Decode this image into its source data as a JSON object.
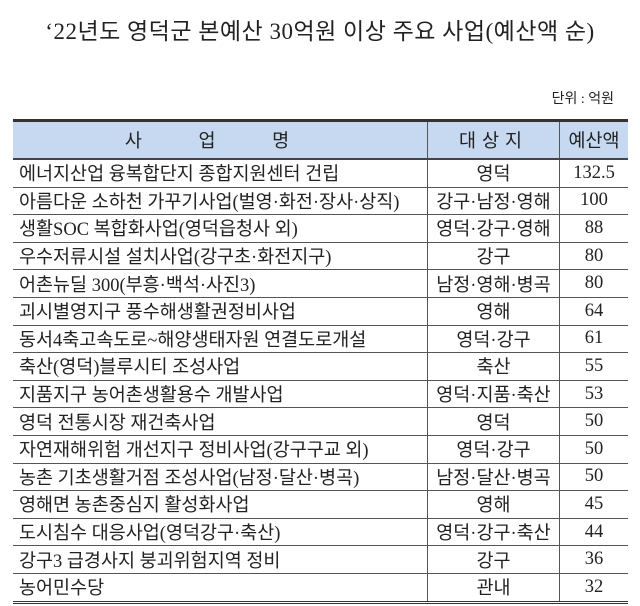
{
  "title": "‘22년도 영덕군 본예산 30억원 이상 주요 사업(예산액 순)",
  "unit": "단위 : 억원",
  "table": {
    "headers": [
      "사 업 명",
      "대상지",
      "예산액"
    ],
    "header_color": "#c6d9f1",
    "rows": [
      [
        "에너지산업 융복합단지 종합지원센터 건립",
        "영덕",
        "132.5"
      ],
      [
        "아름다운 소하천 가꾸기사업(벌영·화전·장사·상직)",
        "강구·남정·영해",
        "100"
      ],
      [
        "생활SOC 복합화사업(영덕읍청사 외)",
        "영덕·강구·영해",
        "88"
      ],
      [
        "우수저류시설 설치사업(강구초·화전지구)",
        "강구",
        "80"
      ],
      [
        "어촌뉴딜 300(부흥·백석·사진3)",
        "남정·영해·병곡",
        "80"
      ],
      [
        "괴시별영지구 풍수해생활권정비사업",
        "영해",
        "64"
      ],
      [
        "동서4축고속도로~해양생태자원 연결도로개설",
        "영덕·강구",
        "61"
      ],
      [
        "축산(영덕)블루시티 조성사업",
        "축산",
        "55"
      ],
      [
        "지품지구 농어촌생활용수 개발사업",
        "영덕·지품·축산",
        "53"
      ],
      [
        "영덕 전통시장 재건축사업",
        "영덕",
        "50"
      ],
      [
        "자연재해위험 개선지구 정비사업(강구구교 외)",
        "영덕·강구",
        "50"
      ],
      [
        "농촌 기초생활거점 조성사업(남정·달산·병곡)",
        "남정·달산·병곡",
        "50"
      ],
      [
        "영해면 농촌중심지 활성화사업",
        "영해",
        "45"
      ],
      [
        "도시침수 대응사업(영덕강구·축산)",
        "영덕·강구·축산",
        "44"
      ],
      [
        "강구3 급경사지 붕괴위험지역 정비",
        "강구",
        "36"
      ],
      [
        "농어민수당",
        "관내",
        "32"
      ]
    ]
  }
}
